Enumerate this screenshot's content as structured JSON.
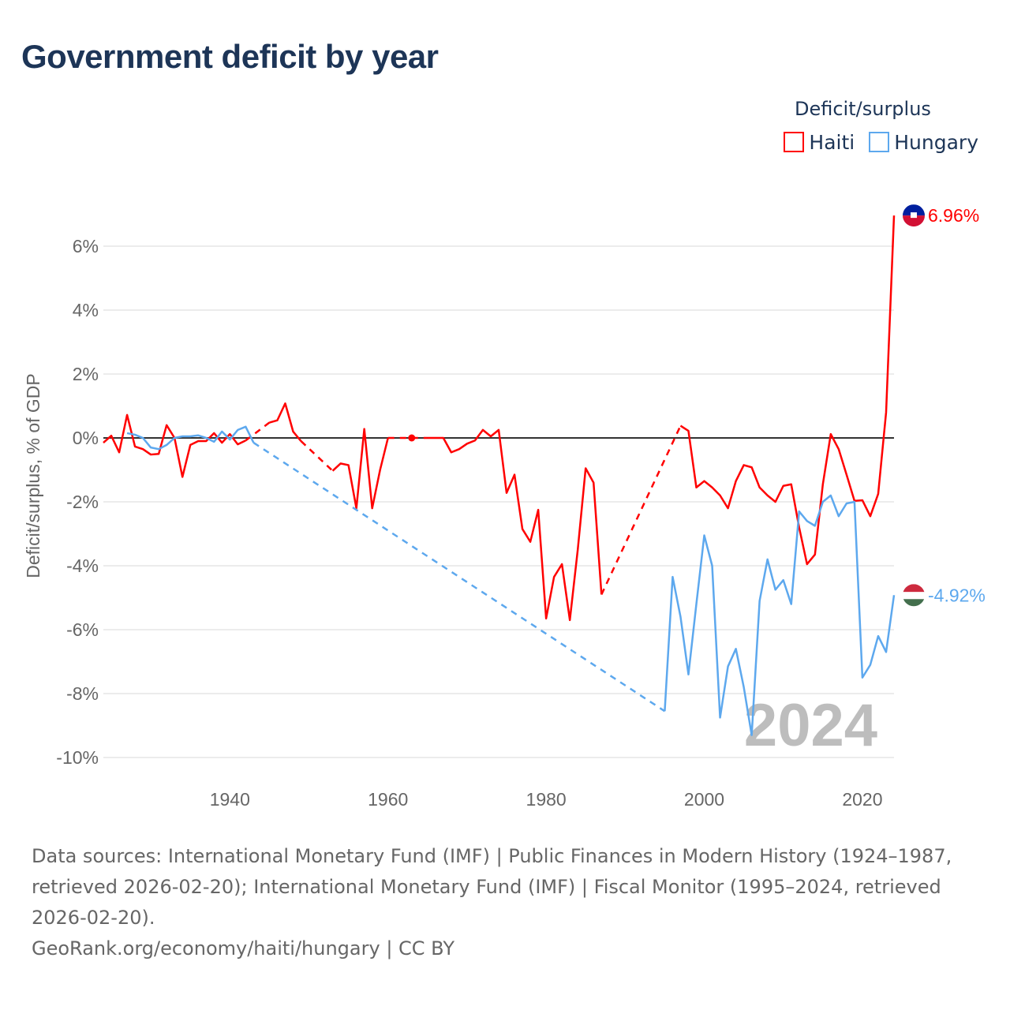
{
  "title": "Government deficit by year",
  "legend_title": "Deficit/surplus",
  "chart_data": {
    "type": "line",
    "title": "Government deficit by year",
    "xlabel": "",
    "ylabel": "Deficit/surplus, % of GDP",
    "xlim": [
      1924,
      2024
    ],
    "ylim": [
      -10,
      7
    ],
    "x_ticks": [
      1940,
      1960,
      1980,
      2000,
      2020
    ],
    "x_tick_labels": [
      "1940",
      "1960",
      "1980",
      "2000",
      "2020"
    ],
    "y_ticks": [
      -10,
      -8,
      -6,
      -4,
      -2,
      0,
      2,
      4,
      6
    ],
    "y_tick_labels": [
      "-10%",
      "-8%",
      "-6%",
      "-4%",
      "-2%",
      "0%",
      "2%",
      "4%",
      "6%"
    ],
    "grid": true,
    "legend_position": "top-right",
    "watermark_year": "2024",
    "series": [
      {
        "name": "Haiti",
        "color": "#ff0000",
        "end_label": "6.96%",
        "start_year": 1924,
        "values": [
          -0.15,
          0.07,
          -0.45,
          0.72,
          -0.27,
          -0.35,
          -0.52,
          -0.5,
          0.4,
          0,
          -1.22,
          -0.22,
          -0.1,
          -0.1,
          0.15,
          -0.15,
          0.12,
          -0.2,
          -0.08,
          null,
          null,
          0.48,
          0.55,
          1.08,
          0.2,
          -0.1,
          null,
          null,
          null,
          -1.03,
          -0.8,
          -0.85,
          -2.2,
          0.28,
          -2.2,
          -1.0,
          0.0,
          null,
          null,
          0.0,
          null,
          0.0,
          0.0,
          0.0,
          -0.45,
          -0.35,
          -0.18,
          -0.08,
          0.25,
          0.05,
          0.25,
          -1.72,
          -1.15,
          -2.85,
          -3.25,
          -2.25,
          -5.65,
          -4.35,
          -3.95,
          -5.7,
          -3.5,
          -0.95,
          -1.4,
          -4.9,
          null,
          null,
          null,
          null,
          null,
          null,
          null,
          null,
          null,
          0.38,
          0.22,
          -1.55,
          -1.35,
          -1.55,
          -1.8,
          -2.2,
          -1.35,
          -0.85,
          -0.92,
          -1.55,
          -1.8,
          -2.0,
          -1.5,
          -1.45,
          -2.8,
          -3.95,
          -3.65,
          -1.45,
          0.12,
          -0.35,
          -1.15,
          -1.97,
          -1.95,
          -2.45,
          -1.75,
          0.8,
          6.96
        ]
      },
      {
        "name": "Hungary",
        "color": "#5da8ee",
        "end_label": "-4.92%",
        "start_year": 1927,
        "values": [
          0.15,
          0.1,
          0.0,
          -0.3,
          -0.35,
          -0.22,
          0.0,
          0.05,
          0.05,
          0.08,
          0.0,
          -0.12,
          0.2,
          -0.05,
          0.25,
          0.35,
          -0.15,
          null,
          null,
          null,
          null,
          null,
          null,
          null,
          null,
          null,
          null,
          null,
          null,
          null,
          null,
          null,
          null,
          null,
          null,
          null,
          null,
          null,
          null,
          null,
          null,
          null,
          null,
          null,
          null,
          null,
          null,
          null,
          null,
          null,
          null,
          null,
          null,
          null,
          null,
          null,
          null,
          null,
          null,
          null,
          null,
          null,
          null,
          null,
          null,
          null,
          null,
          null,
          -8.55,
          -4.35,
          -5.6,
          -7.4,
          -5.2,
          -3.05,
          -4.0,
          -8.75,
          -7.15,
          -6.6,
          -7.8,
          -9.3,
          -5.1,
          -3.8,
          -4.75,
          -4.45,
          -5.2,
          -2.3,
          -2.6,
          -2.75,
          -2.0,
          -1.8,
          -2.45,
          -2.05,
          -2.0,
          -7.5,
          -7.1,
          -6.2,
          -6.7,
          -4.92
        ]
      }
    ]
  },
  "footer": {
    "sources": "Data sources: International Monetary Fund (IMF) | Public Finances in Modern History (1924–1987, retrieved 2026-02-20); International Monetary Fund (IMF) | Fiscal Monitor (1995–2024, retrieved 2026-02-20).",
    "credit": "GeoRank.org/economy/haiti/hungary | CC BY"
  }
}
